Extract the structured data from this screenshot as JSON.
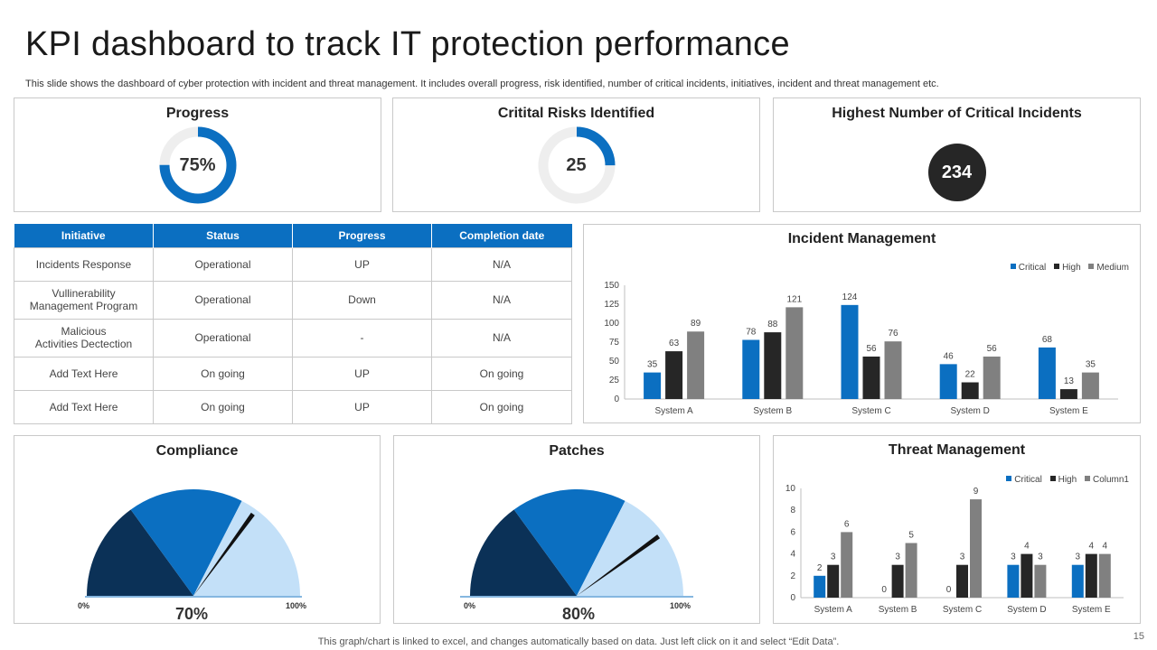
{
  "title": "KPI dashboard to track IT protection performance",
  "subtitle": "This slide shows the dashboard of cyber protection with incident and threat management. It includes overall progress, risk identified, number of critical incidents, initiatives, incident and threat management etc.",
  "colors": {
    "accent": "#0b6fc1",
    "dark": "#262626",
    "gray": "#808080",
    "navy": "#0b3157",
    "light_blue": "#c3e0f8",
    "track": "#eeeeee"
  },
  "progress": {
    "title": "Progress",
    "label": "75%",
    "value": 0.75
  },
  "risks": {
    "title": "Critital Risks Identified",
    "label": "25",
    "value": 0.25
  },
  "incidents_card": {
    "title": "Highest Number of Critical Incidents",
    "value": "234"
  },
  "table": {
    "headers": [
      "Initiative",
      "Status",
      "Progress",
      "Completion date"
    ],
    "rows": [
      [
        "Incidents Response",
        "Operational",
        "UP",
        "N/A"
      ],
      [
        "Vullinerability\nManagement Program",
        "Operational",
        "Down",
        "N/A"
      ],
      [
        "Malicious\nActivities Dectection",
        "Operational",
        "-",
        "N/A"
      ],
      [
        "Add Text Here",
        "On going",
        "UP",
        "On going"
      ],
      [
        "Add Text Here",
        "On going",
        "UP",
        "On going"
      ]
    ]
  },
  "compliance": {
    "title": "Compliance",
    "value_label": "70%",
    "min_label": "0%",
    "max_label": "100%"
  },
  "patches": {
    "title": "Patches",
    "value_label": "80%",
    "min_label": "0%",
    "max_label": "100%"
  },
  "footer": "This graph/chart is linked to excel,  and changes automatically based on data. Just left click on it and select “Edit Data”.",
  "page_number": "15",
  "chart_data": [
    {
      "type": "bar",
      "title": "Incident Management",
      "categories": [
        "System A",
        "System B",
        "System C",
        "System D",
        "System E"
      ],
      "series": [
        {
          "name": "Critical",
          "color": "#0b6fc1",
          "values": [
            35,
            78,
            124,
            46,
            68
          ]
        },
        {
          "name": "High",
          "color": "#262626",
          "values": [
            63,
            88,
            56,
            22,
            13
          ]
        },
        {
          "name": "Medium",
          "color": "#808080",
          "values": [
            89,
            121,
            76,
            56,
            35
          ]
        }
      ],
      "yticks": [
        0,
        25,
        50,
        75,
        100,
        125,
        150
      ],
      "ylim": [
        0,
        150
      ],
      "legend": "top-right",
      "grid": false
    },
    {
      "type": "bar",
      "title": "Threat Management",
      "categories": [
        "System A",
        "System B",
        "System C",
        "System D",
        "System E"
      ],
      "series": [
        {
          "name": "Critical",
          "color": "#0b6fc1",
          "values": [
            2,
            0,
            0,
            3,
            3
          ]
        },
        {
          "name": "High",
          "color": "#262626",
          "values": [
            3,
            3,
            3,
            4,
            4
          ]
        },
        {
          "name": "Column1",
          "color": "#808080",
          "values": [
            6,
            5,
            9,
            3,
            4
          ]
        }
      ],
      "yticks": [
        0,
        2,
        4,
        6,
        8,
        10
      ],
      "ylim": [
        0,
        10
      ],
      "legend": "top-right",
      "grid": false
    },
    {
      "type": "pie",
      "title": "Compliance",
      "gauge_value": 0.7,
      "segments": [
        {
          "fraction": 0.3,
          "color": "#0b3157"
        },
        {
          "fraction": 0.35,
          "color": "#0b6fc1"
        },
        {
          "fraction": 0.35,
          "color": "#c3e0f8"
        }
      ]
    },
    {
      "type": "pie",
      "title": "Patches",
      "gauge_value": 0.8,
      "segments": [
        {
          "fraction": 0.3,
          "color": "#0b3157"
        },
        {
          "fraction": 0.35,
          "color": "#0b6fc1"
        },
        {
          "fraction": 0.35,
          "color": "#c3e0f8"
        }
      ]
    }
  ]
}
